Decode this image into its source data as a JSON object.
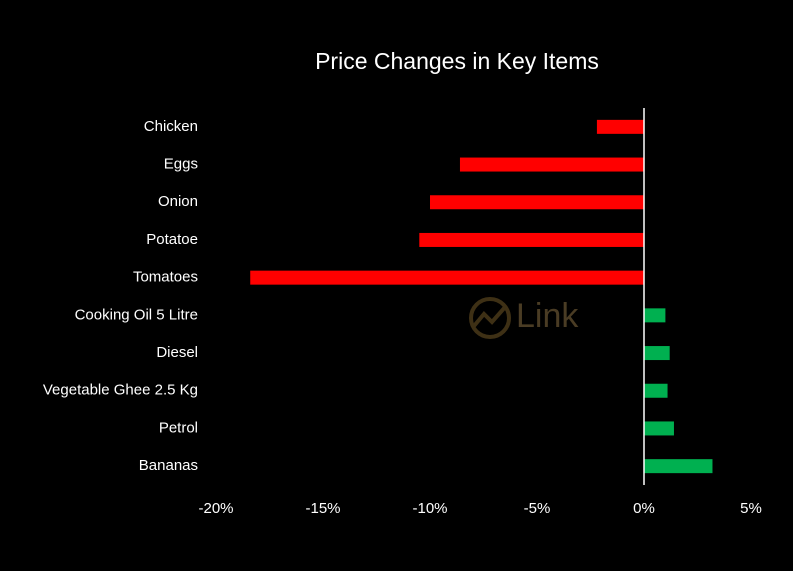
{
  "chart_data": {
    "type": "hbar",
    "title": "Price Changes in Key Items",
    "watermark": "Link",
    "categories": [
      "Chicken",
      "Eggs",
      "Onion",
      "Potatoe",
      "Tomatoes",
      "Cooking Oil 5 Litre",
      "Diesel",
      "Vegetable Ghee 2.5 Kg",
      "Petrol",
      "Bananas"
    ],
    "values": [
      -2.2,
      -8.6,
      -10.0,
      -10.5,
      -18.4,
      1.0,
      1.2,
      1.1,
      1.4,
      3.2
    ],
    "negative_color": "#ff0000",
    "positive_color": "#00b050",
    "xlim": [
      -20,
      5
    ],
    "xticks": [
      {
        "value": -20,
        "label": "-20%"
      },
      {
        "value": -15,
        "label": "-15%"
      },
      {
        "value": -10,
        "label": "-10%"
      },
      {
        "value": -5,
        "label": "-5%"
      },
      {
        "value": 0,
        "label": "0%"
      },
      {
        "value": 5,
        "label": "5%"
      }
    ],
    "grid": false
  }
}
